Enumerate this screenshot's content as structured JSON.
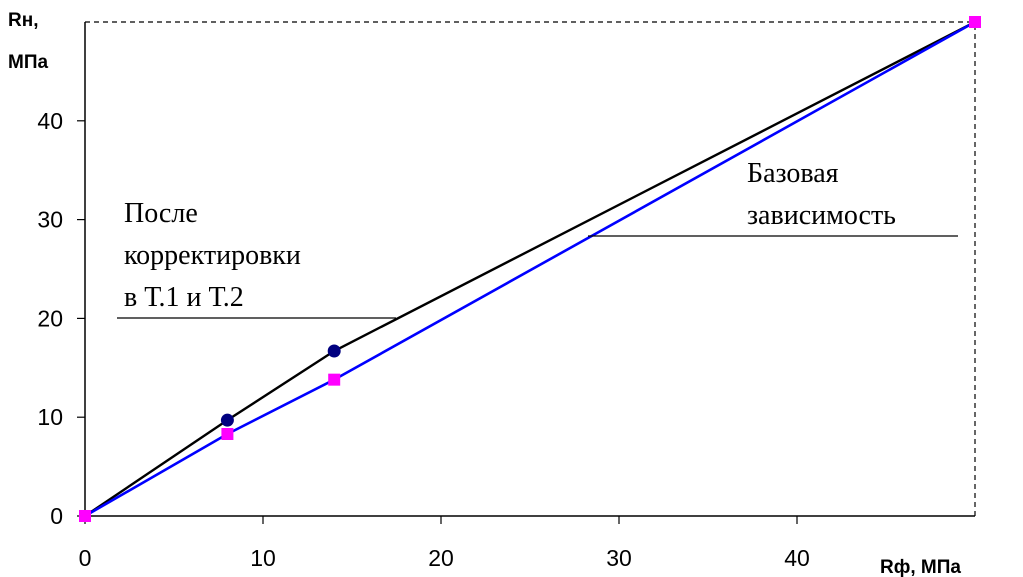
{
  "chart_data": {
    "type": "line",
    "x": [
      0,
      8,
      14,
      50
    ],
    "series": [
      {
        "values": [
          0,
          8.3,
          13.8,
          50
        ],
        "color": "#0000ff",
        "marker": "square",
        "marker_color": "#ff00ff"
      },
      {
        "values": [
          0,
          9.7,
          16.7,
          50
        ],
        "color": "#000000",
        "marker": "circle",
        "marker_color": "#000080",
        "marked_points": [
          1,
          2
        ]
      }
    ],
    "xlabel": "Rф, МПа",
    "ylabel_line1": "Rн,",
    "ylabel_line2": "МПа",
    "xlim": [
      0,
      50
    ],
    "ylim": [
      0,
      50
    ],
    "x_ticks": [
      0,
      10,
      20,
      30,
      40
    ],
    "y_ticks": [
      0,
      10,
      20,
      30,
      40
    ],
    "grid": false,
    "reference_lines": {
      "x_max": 50,
      "y_max": 50,
      "style": "dashed"
    },
    "annotations": {
      "corrected": [
        "После",
        "корректировки",
        "в Т.1 и Т.2"
      ],
      "base": [
        "Базовая",
        "зависимость"
      ]
    }
  }
}
